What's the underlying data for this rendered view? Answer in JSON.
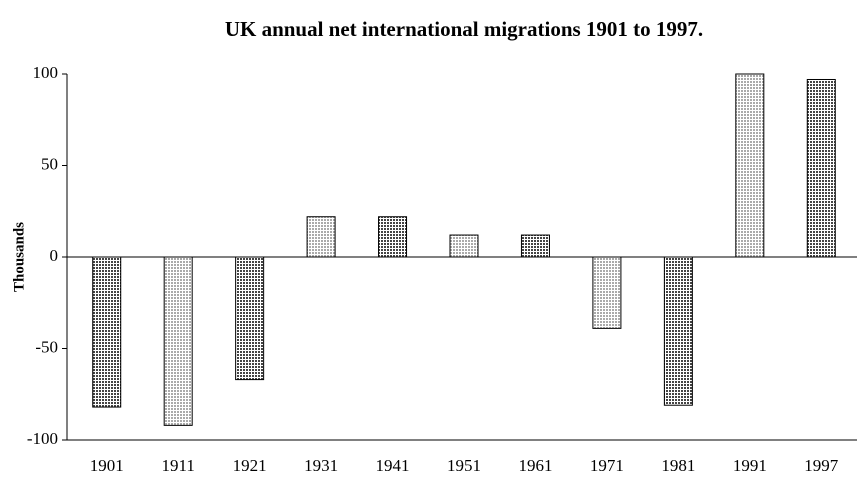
{
  "chart_data": {
    "type": "bar",
    "title": "UK annual net international migrations 1901 to 1997.",
    "y_label": "Thousands",
    "categories": [
      "1901",
      "1911",
      "1921",
      "1931",
      "1941",
      "1951",
      "1961",
      "1971",
      "1981",
      "1991",
      "1997"
    ],
    "values": [
      -82,
      -92,
      -67,
      22,
      22,
      12,
      12,
      -39,
      -81,
      100,
      97
    ],
    "colors": [
      "#444444",
      "#aaaaaa",
      "#444444",
      "#aaaaaa",
      "#444444",
      "#aaaaaa",
      "#444444",
      "#aaaaaa",
      "#444444",
      "#aaaaaa",
      "#444444"
    ],
    "ylim": [
      -100,
      100
    ],
    "yticks": [
      -100,
      -50,
      0,
      50,
      100
    ],
    "grid": false
  }
}
